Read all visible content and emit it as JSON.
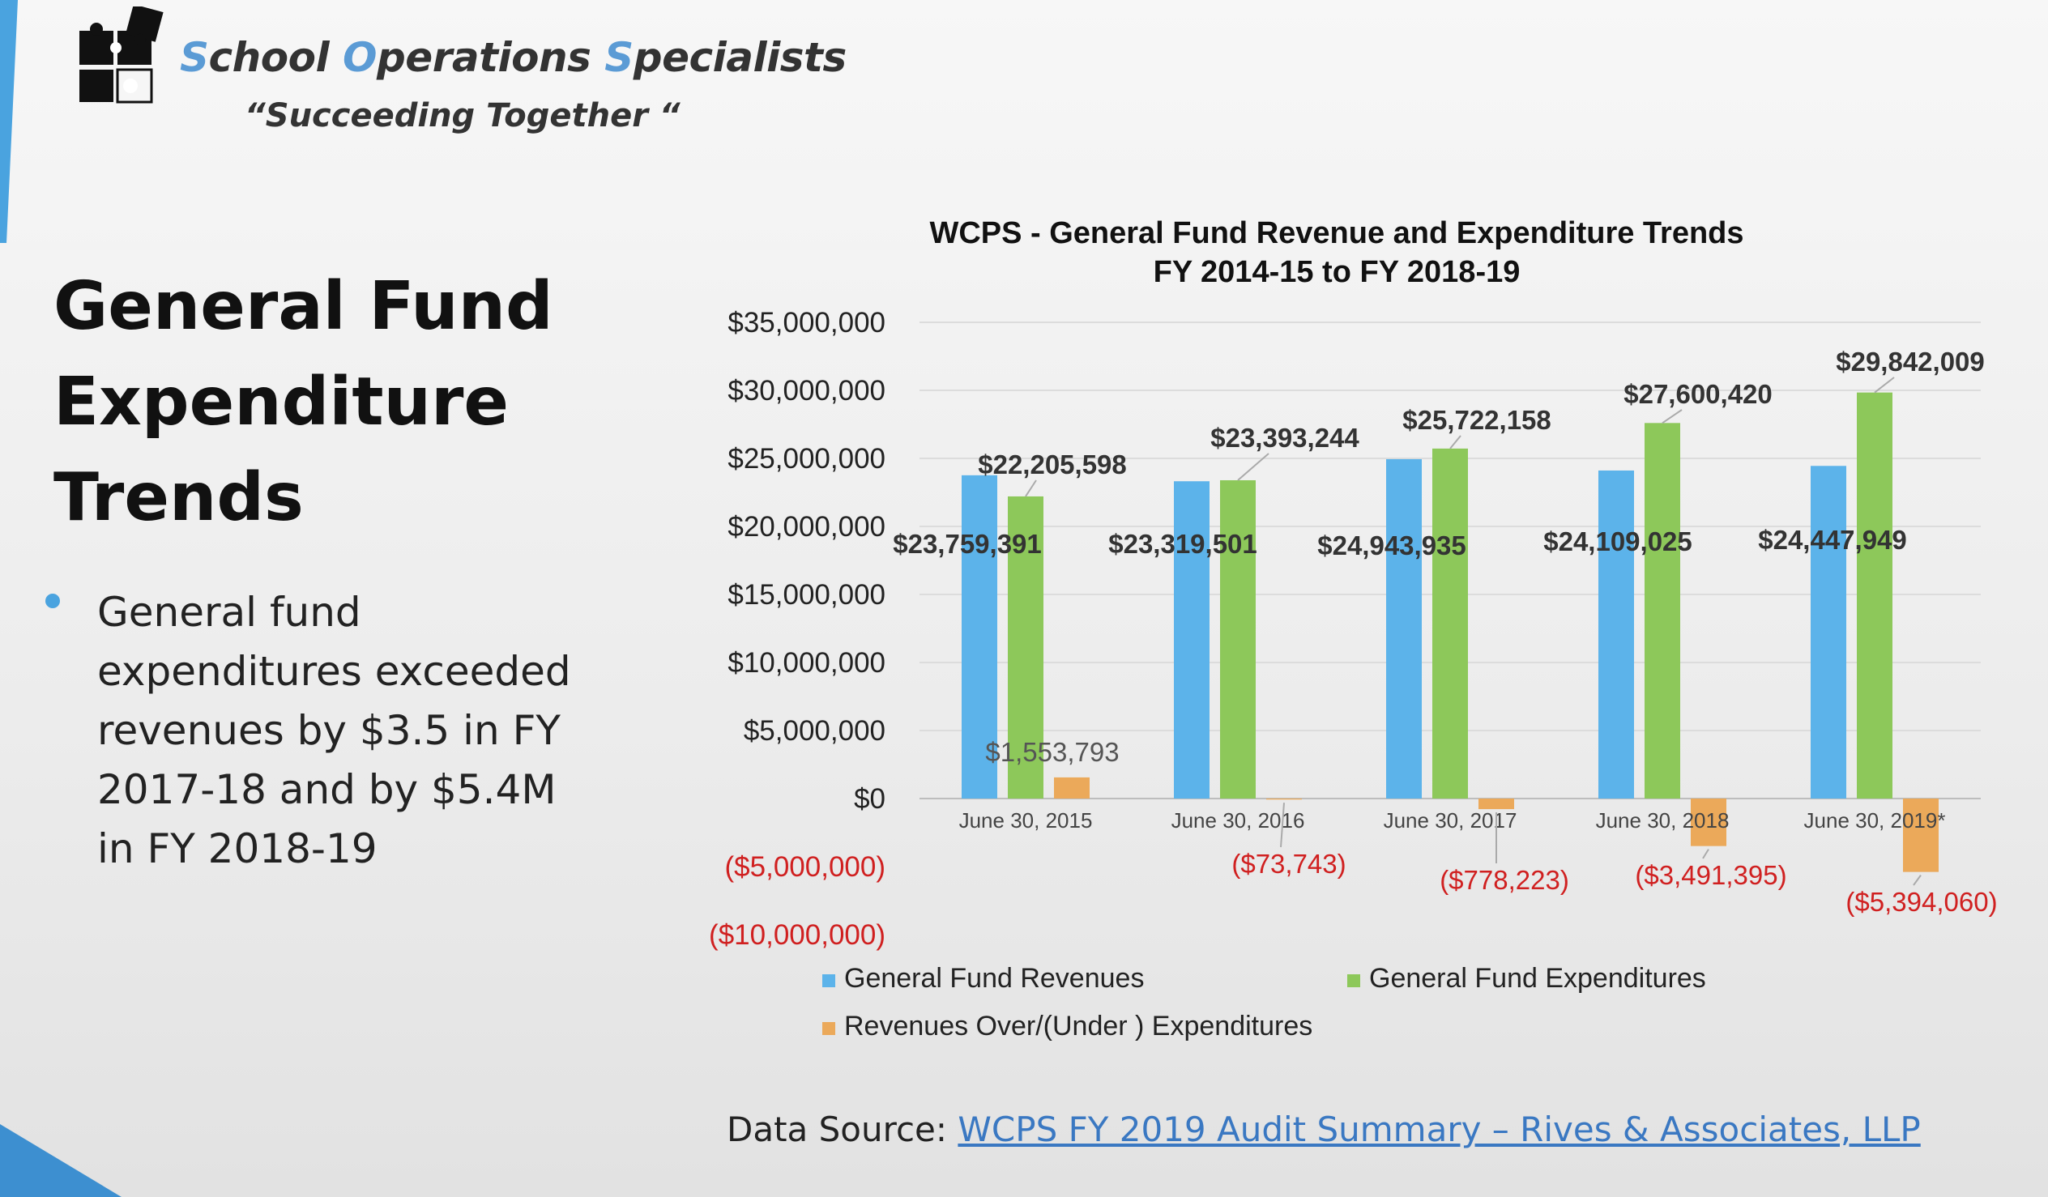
{
  "brand": {
    "name_parts": [
      {
        "cap": "S",
        "rest": "chool "
      },
      {
        "cap": "O",
        "rest": "perations "
      },
      {
        "cap": "S",
        "rest": "pecialists"
      }
    ],
    "tagline": "“Succeeding Together “"
  },
  "slide": {
    "title_lines": [
      "General Fund",
      "Expenditure",
      "Trends"
    ],
    "bullet": "General fund expenditures exceeded revenues by $3.5 in FY 2017-18 and by $5.4M in FY 2018-19"
  },
  "source": {
    "prefix": "Data Source: ",
    "link_text": "WCPS FY 2019 Audit Summary – Rives & Associates, LLP"
  },
  "colors": {
    "revenues": "#5cb3ea",
    "expenditures": "#8dc85a",
    "difference": "#eba95a",
    "negative_label": "#d02020",
    "accent_blue": "#4aa3df"
  },
  "chart_data": {
    "type": "bar",
    "title": "WCPS - General Fund Revenue and Expenditure Trends",
    "subtitle": "FY 2014-15 to FY 2018-19",
    "categories": [
      "June 30, 2015",
      "June 30, 2016",
      "June 30, 2017",
      "June 30, 2018",
      "June 30, 2019*"
    ],
    "series": [
      {
        "name": "General Fund Revenues",
        "values": [
          23759391,
          23319501,
          24943935,
          24109025,
          24447949
        ],
        "labels": [
          "$23,759,391",
          "$23,319,501",
          "$24,943,935",
          "$24,109,025",
          "$24,447,949"
        ]
      },
      {
        "name": "General Fund Expenditures",
        "values": [
          22205598,
          23393244,
          25722158,
          27600420,
          29842009
        ],
        "labels": [
          "$22,205,598",
          "$23,393,244",
          "$25,722,158",
          "$27,600,420",
          "$29,842,009"
        ]
      },
      {
        "name": "Revenues Over/(Under ) Expenditures",
        "values": [
          1553793,
          -73743,
          -778223,
          -3491395,
          -5394060
        ],
        "labels": [
          "$1,553,793",
          "($73,743)",
          "($778,223)",
          "($3,491,395)",
          "($5,394,060)"
        ]
      }
    ],
    "ylim": [
      -10000000,
      35000000
    ],
    "yticks": [
      35000000,
      30000000,
      25000000,
      20000000,
      15000000,
      10000000,
      5000000,
      0,
      -5000000,
      -10000000
    ],
    "ytick_labels": [
      "$35,000,000",
      "$30,000,000",
      "$25,000,000",
      "$20,000,000",
      "$15,000,000",
      "$10,000,000",
      "$5,000,000",
      "$0",
      "($5,000,000)",
      "($10,000,000)"
    ],
    "grid": true,
    "legend": "bottom"
  }
}
